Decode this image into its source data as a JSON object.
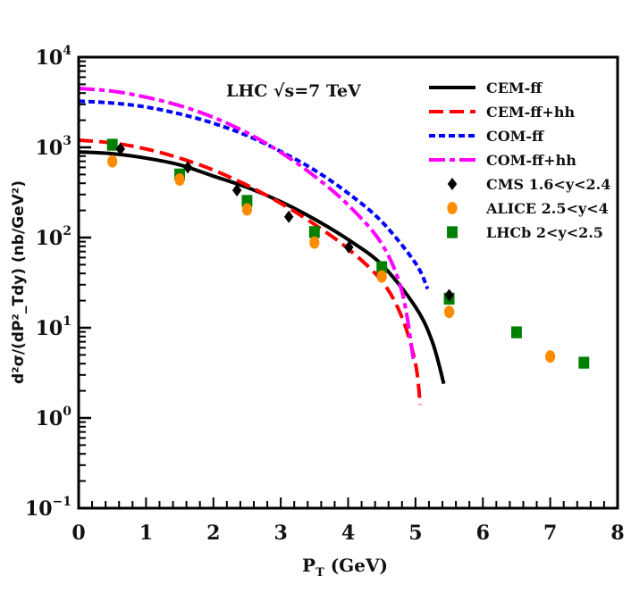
{
  "chart_data": {
    "type": "line",
    "title": "",
    "annotation": "LHC √s=7 TeV",
    "xlabel": "P_T (GeV)",
    "xlabel_main": "P",
    "xlabel_sub": "T",
    "xlabel_unit": " (GeV)",
    "ylabel": "d²σ/(dP²_Tdy) (nb/GeV²)",
    "xlim": [
      0,
      8
    ],
    "ylim": [
      0.1,
      10000
    ],
    "yscale": "log",
    "grid": false,
    "legend_position": "upper right",
    "x_ticks": [
      "0",
      "1",
      "2",
      "3",
      "4",
      "5",
      "6",
      "7",
      "8"
    ],
    "y_ticks": [
      {
        "base": "10",
        "exp": "4"
      },
      {
        "base": "10",
        "exp": "3"
      },
      {
        "base": "10",
        "exp": "2"
      },
      {
        "base": "10",
        "exp": "1"
      },
      {
        "base": "10",
        "exp": "0"
      },
      {
        "base": "10",
        "exp": "−1"
      }
    ],
    "series": [
      {
        "name": "CEM-ff",
        "kind": "line",
        "style": "solid",
        "color": "#000000",
        "x": [
          0,
          0.5,
          1,
          1.5,
          2,
          2.5,
          3,
          3.5,
          4,
          4.5,
          5,
          5.25,
          5.42
        ],
        "y": [
          890,
          850,
          760,
          640,
          480,
          360,
          250,
          160,
          95,
          50,
          17,
          7,
          2.4
        ]
      },
      {
        "name": "CEM-ff+hh",
        "kind": "line",
        "style": "dashed",
        "color": "#ff0000",
        "x": [
          0,
          0.5,
          1,
          1.5,
          2,
          2.5,
          3,
          3.5,
          4,
          4.5,
          4.8,
          5,
          5.07
        ],
        "y": [
          1200,
          1120,
          960,
          760,
          560,
          380,
          240,
          140,
          75,
          33,
          13,
          4,
          1.4
        ]
      },
      {
        "name": "COM-ff",
        "kind": "line",
        "style": "dotted",
        "color": "#0000ff",
        "x": [
          0,
          0.5,
          1,
          1.5,
          2,
          2.5,
          3,
          3.5,
          4,
          4.5,
          5,
          5.18
        ],
        "y": [
          3250,
          3100,
          2800,
          2350,
          1850,
          1350,
          900,
          560,
          310,
          150,
          52,
          27
        ]
      },
      {
        "name": "COM-ff+hh",
        "kind": "line",
        "style": "dashdot",
        "color": "#ff00ff",
        "x": [
          0,
          0.5,
          1,
          1.5,
          2,
          2.5,
          3,
          3.5,
          4,
          4.5,
          4.8,
          4.97
        ],
        "y": [
          4500,
          4200,
          3600,
          2900,
          2150,
          1450,
          880,
          480,
          230,
          85,
          25,
          4.4
        ]
      },
      {
        "name": "CMS 1.6<y<2.4",
        "kind": "scatter",
        "marker": "diamond",
        "color": "#000000",
        "x": [
          0.62,
          1.62,
          2.35,
          3.12,
          4.01,
          5.5
        ],
        "y": [
          960,
          600,
          335,
          170,
          78,
          23
        ]
      },
      {
        "name": "ALICE 2.5<y<4",
        "kind": "scatter",
        "marker": "circle",
        "color": "#ff8c00",
        "x": [
          0.5,
          1.5,
          2.5,
          3.5,
          4.5,
          5.5,
          7.0
        ],
        "y": [
          700,
          440,
          205,
          88,
          37,
          15,
          4.8
        ]
      },
      {
        "name": "LHCb 2<y<2.5",
        "kind": "scatter",
        "marker": "square",
        "color": "#008000",
        "x": [
          0.5,
          1.5,
          2.5,
          3.5,
          4.5,
          5.5,
          6.5,
          7.5
        ],
        "y": [
          1070,
          500,
          255,
          115,
          47,
          21,
          8.9,
          4.1
        ]
      }
    ]
  },
  "legend": {
    "items": [
      {
        "label": "CEM-ff"
      },
      {
        "label": "CEM-ff+hh"
      },
      {
        "label": "COM-ff"
      },
      {
        "label": "COM-ff+hh"
      },
      {
        "label": "CMS 1.6<y<2.4"
      },
      {
        "label": "ALICE 2.5<y<4"
      },
      {
        "label": "LHCb 2<y<2.5"
      }
    ]
  }
}
